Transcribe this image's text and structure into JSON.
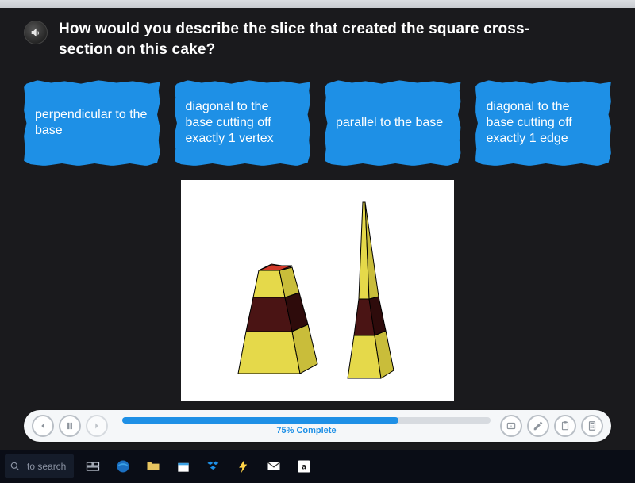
{
  "question": {
    "text": "How would you describe the slice that created the square cross-section on this cake?"
  },
  "choices": [
    {
      "label": "perpendicular to the base"
    },
    {
      "label": "diagonal to the base cutting off exactly 1 vertex"
    },
    {
      "label": "parallel to the base"
    },
    {
      "label": "diagonal to the base cutting off exactly 1 edge"
    }
  ],
  "figure": {
    "background": "#ffffff",
    "outline": "#000000",
    "yellow_light": "#e5d94a",
    "yellow_dark": "#c9bd3a",
    "brown_light": "#4a1414",
    "brown_dark": "#2e0b0b",
    "red_light": "#d13a2a",
    "red_dark": "#9a2418"
  },
  "progress": {
    "percent": 75,
    "label": "75% Complete"
  },
  "colors": {
    "page_bg": "#1a1a1d",
    "choice_bg": "#1e90e6",
    "choice_text": "#ffffff",
    "question_text": "#ffffff",
    "player_bg": "#f5f7f9",
    "track_bg": "#d7dbe0"
  },
  "taskbar": {
    "search_placeholder": "to search"
  }
}
